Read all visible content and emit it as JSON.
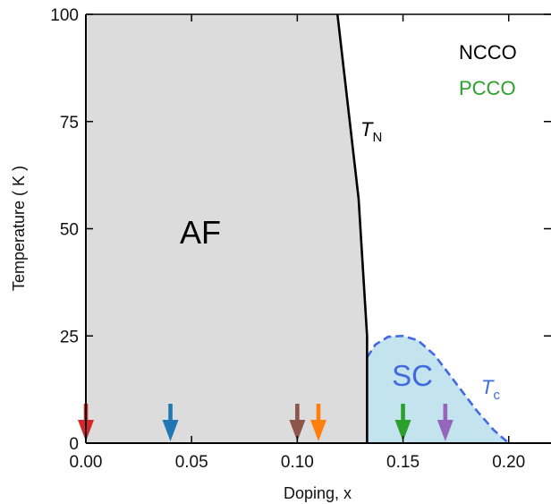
{
  "chart_data": {
    "type": "area",
    "xlabel": "Doping, x",
    "ylabel": "Temperature ( K )",
    "xlim": [
      0,
      0.22
    ],
    "ylim": [
      0,
      100
    ],
    "x_ticks": [
      0.0,
      0.05,
      0.1,
      0.15,
      0.2
    ],
    "x_tick_labels": [
      "0.00",
      "0.05",
      "0.10",
      "0.15",
      "0.20"
    ],
    "y_ticks": [
      0,
      25,
      50,
      75,
      100
    ],
    "y_tick_labels": [
      "0",
      "25",
      "50",
      "75",
      "100"
    ],
    "legend": [
      {
        "label": "NCCO",
        "color": "#000000"
      },
      {
        "label": "PCCO",
        "color": "#2ca02c"
      }
    ],
    "regions": {
      "af": {
        "label": "AF",
        "fill": "#dcdcdc",
        "boundary_tn": [
          {
            "x": 0.119,
            "y": 100
          },
          {
            "x": 0.129,
            "y": 57
          },
          {
            "x": 0.133,
            "y": 25
          },
          {
            "x": 0.133,
            "y": 0
          }
        ]
      },
      "sc": {
        "label": "SC",
        "fill": "#c3e3ee",
        "label_color": "#4169e1",
        "tc_curve": [
          {
            "x": 0.133,
            "y": 20
          },
          {
            "x": 0.137,
            "y": 23
          },
          {
            "x": 0.143,
            "y": 24.8
          },
          {
            "x": 0.15,
            "y": 25
          },
          {
            "x": 0.157,
            "y": 24
          },
          {
            "x": 0.165,
            "y": 20.5
          },
          {
            "x": 0.175,
            "y": 14
          },
          {
            "x": 0.185,
            "y": 7.5
          },
          {
            "x": 0.193,
            "y": 3
          },
          {
            "x": 0.2,
            "y": 0
          }
        ]
      }
    },
    "curve_labels": {
      "tn": {
        "main": "T",
        "sub": "N"
      },
      "tc": {
        "main": "T",
        "sub": "c"
      }
    },
    "arrows": [
      {
        "x": 0.0,
        "color": "#d62728"
      },
      {
        "x": 0.04,
        "color": "#1f77b4"
      },
      {
        "x": 0.1,
        "color": "#8c564b"
      },
      {
        "x": 0.11,
        "color": "#ff7f0e"
      },
      {
        "x": 0.15,
        "color": "#2ca02c"
      },
      {
        "x": 0.17,
        "color": "#9467bd"
      }
    ]
  }
}
